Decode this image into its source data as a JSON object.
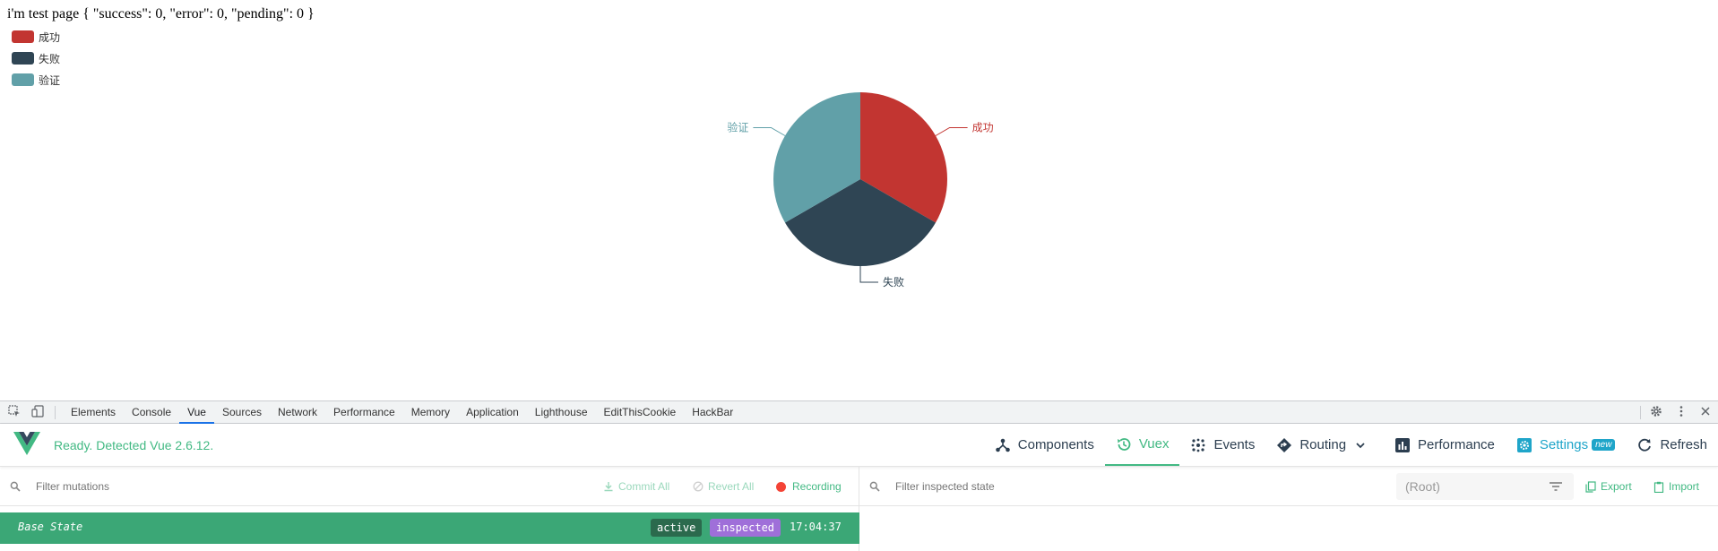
{
  "page": {
    "test_text": "i'm test page { \"success\": 0, \"error\": 0, \"pending\": 0 }"
  },
  "legend": [
    {
      "label": "成功",
      "color": "#c23531"
    },
    {
      "label": "失败",
      "color": "#2f4554"
    },
    {
      "label": "验证",
      "color": "#61a0a8"
    }
  ],
  "chart_data": {
    "type": "pie",
    "slices": [
      {
        "label": "成功",
        "value": 1,
        "color": "#c23531"
      },
      {
        "label": "失败",
        "value": 1,
        "color": "#2f4554"
      },
      {
        "label": "验证",
        "value": 1,
        "color": "#61a0a8"
      }
    ],
    "legend_position": "top-left"
  },
  "devtools": {
    "tabs": [
      "Elements",
      "Console",
      "Vue",
      "Sources",
      "Network",
      "Performance",
      "Memory",
      "Application",
      "Lighthouse",
      "EditThisCookie",
      "HackBar"
    ],
    "active_tab": "Vue"
  },
  "vue": {
    "status": "Ready. Detected Vue 2.6.12.",
    "nav": {
      "components": "Components",
      "vuex": "Vuex",
      "events": "Events",
      "routing": "Routing",
      "performance": "Performance",
      "settings": "Settings",
      "settings_badge": "new",
      "refresh": "Refresh"
    },
    "left": {
      "filter_placeholder": "Filter mutations",
      "commit_all": "Commit All",
      "revert_all": "Revert All",
      "recording": "Recording",
      "base_state": "Base State",
      "tag_active": "active",
      "tag_inspected": "inspected",
      "time": "17:04:37"
    },
    "right": {
      "filter_placeholder": "Filter inspected state",
      "root": "(Root)",
      "export": "Export",
      "import": "Import"
    }
  },
  "colors": {
    "vue_green": "#42b983",
    "base_row": "#3ba776",
    "settings_blue": "#1fa5c9"
  }
}
